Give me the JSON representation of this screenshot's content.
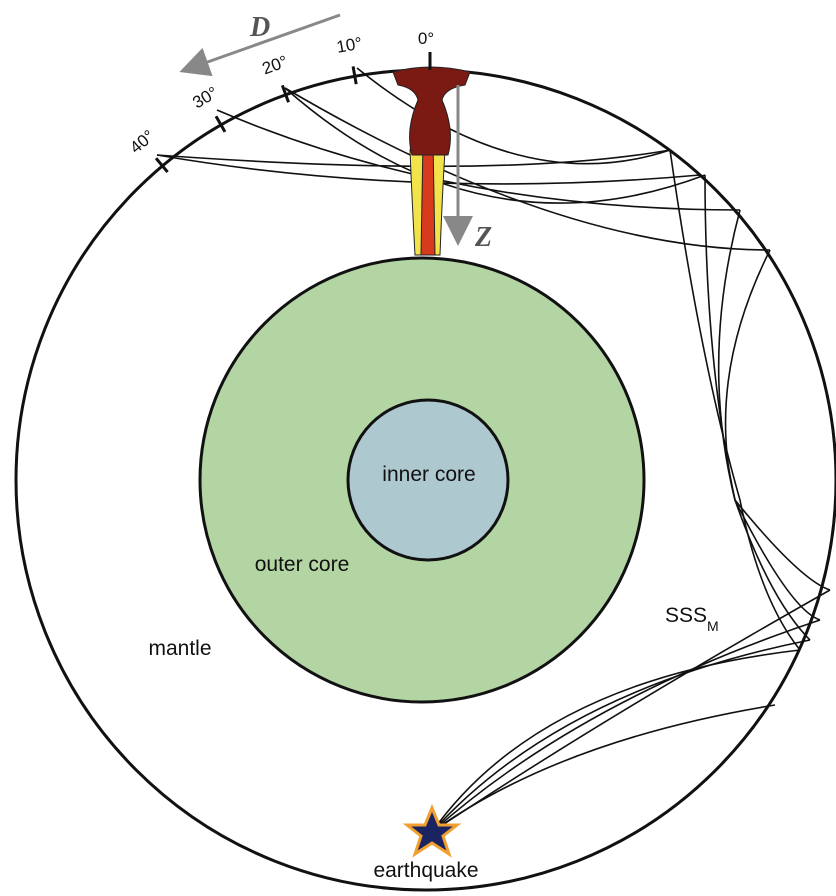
{
  "labels": {
    "distance_axis": "D",
    "depth_axis": "Z",
    "degrees": [
      "0°",
      "10°",
      "20°",
      "30°",
      "40°"
    ],
    "inner_core": "inner core",
    "outer_core": "outer core",
    "mantle": "mantle",
    "phase": {
      "name": "SSS",
      "subscript": "M"
    },
    "source": "earthquake"
  }
}
